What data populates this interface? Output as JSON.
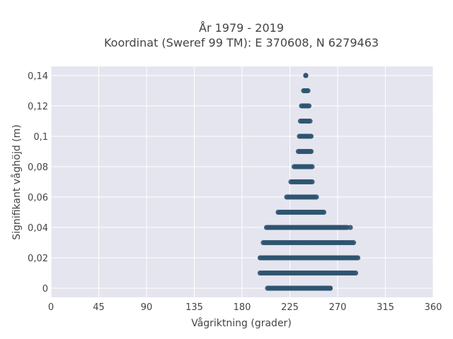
{
  "chart_data": {
    "type": "scatter",
    "title_line1": "År 1979 - 2019",
    "title_line2": "Koordinat (Sweref 99 TM): E 370608, N 6279463",
    "xlabel": "Vågriktning (grader)",
    "ylabel": "Signifikant våghöjd (m)",
    "xlim": [
      0,
      360
    ],
    "ylim": [
      -0.006,
      0.146
    ],
    "x_ticks": [
      0,
      45,
      90,
      135,
      180,
      225,
      270,
      315,
      360
    ],
    "x_tick_labels": [
      "0",
      "45",
      "90",
      "135",
      "180",
      "225",
      "270",
      "315",
      "360"
    ],
    "y_ticks": [
      0,
      0.02,
      0.04,
      0.06,
      0.08,
      0.1,
      0.12,
      0.14
    ],
    "y_tick_labels": [
      "0",
      "0,02",
      "0,04",
      "0,06",
      "0,08",
      "0,1",
      "0,12",
      "0,14"
    ],
    "grid": true,
    "marker_color": "#2f5470",
    "plot_bg": "#e5e5ef",
    "series": [
      {
        "points_by_height": [
          {
            "y": 0,
            "x_min": 204,
            "x_max": 263
          },
          {
            "y": 0.01,
            "x_min": 197,
            "x_max": 287
          },
          {
            "y": 0.02,
            "x_min": 197,
            "x_max": 289
          },
          {
            "y": 0.03,
            "x_min": 200,
            "x_max": 285
          },
          {
            "y": 0.04,
            "x_min": 203,
            "x_max": 279
          },
          {
            "y": 0.05,
            "x_min": 214,
            "x_max": 257
          },
          {
            "y": 0.06,
            "x_min": 222,
            "x_max": 250
          },
          {
            "y": 0.07,
            "x_min": 226,
            "x_max": 246
          },
          {
            "y": 0.08,
            "x_min": 229,
            "x_max": 246
          },
          {
            "y": 0.09,
            "x_min": 233,
            "x_max": 245
          },
          {
            "y": 0.1,
            "x_min": 234,
            "x_max": 245
          },
          {
            "y": 0.11,
            "x_min": 235,
            "x_max": 244
          },
          {
            "y": 0.12,
            "x_min": 236,
            "x_max": 243
          },
          {
            "y": 0.13,
            "x_min": 238,
            "x_max": 242
          },
          {
            "y": 0.14,
            "x_min": 240,
            "x_max": 240
          }
        ],
        "outliers": [
          {
            "x": 256,
            "y": 0
          },
          {
            "x": 263,
            "y": 0
          },
          {
            "x": 282,
            "y": 0.04
          }
        ]
      }
    ]
  }
}
